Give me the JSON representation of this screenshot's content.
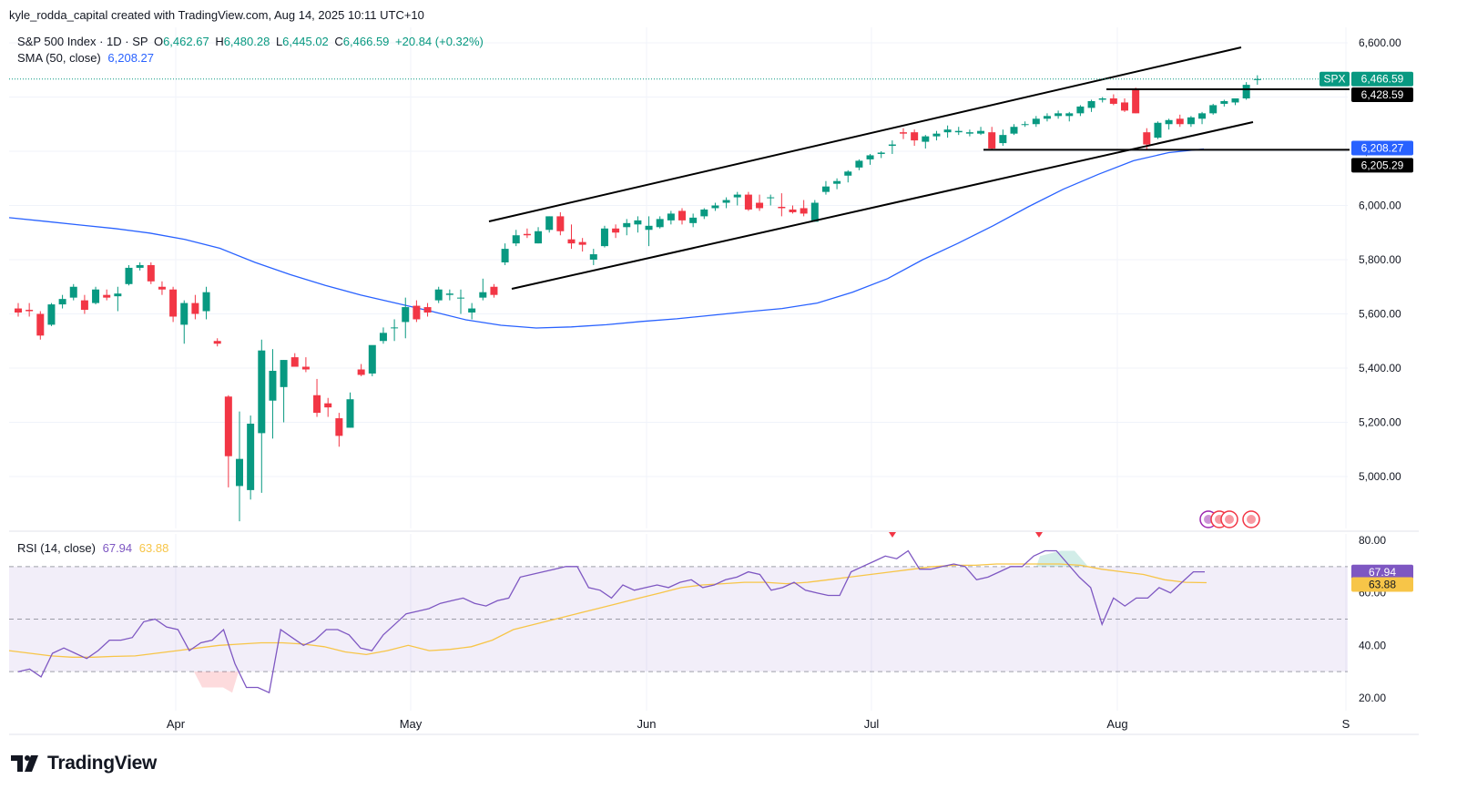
{
  "header": {
    "attribution": "kyle_rodda_capital created with TradingView.com, Aug 14, 2025 10:11 UTC+10"
  },
  "legend": {
    "symbol": "S&P 500 Index · 1D · SP",
    "open_label": "O",
    "open": "6,462.67",
    "high_label": "H",
    "high": "6,480.28",
    "low_label": "L",
    "low": "6,445.02",
    "close_label": "C",
    "close": "6,466.59",
    "change": "+20.84 (+0.32%)",
    "sma_label": "SMA (50, close)",
    "sma_value": "6,208.27",
    "rsi_label": "RSI (14, close)",
    "rsi_value": "67.94",
    "rsi_ma_value": "63.88"
  },
  "badges": {
    "spx_ticker": "SPX",
    "spx_price": "6,466.59",
    "resistance": "6,428.59",
    "sma": "6,208.27",
    "support": "6,205.29",
    "rsi": "67.94",
    "rsi_ma": "63.88"
  },
  "footer": {
    "brand": "TradingView"
  },
  "colors": {
    "up": "#089981",
    "down": "#f23645",
    "sma": "#2962ff",
    "rsi": "#7e57c2",
    "rsi_ma": "#f7c548",
    "line": "#000000"
  },
  "chart_data": [
    {
      "type": "candlestick",
      "title": "S&P 500 Index · 1D · SP",
      "x_labels": [
        "Apr",
        "May",
        "Jun",
        "Jul",
        "Aug",
        "S"
      ],
      "y_ticks": [
        "5,000.00",
        "5,200.00",
        "5,400.00",
        "5,600.00",
        "5,800.00",
        "6,000.00",
        "6,200.00",
        "6,400.00",
        "6,600.00"
      ],
      "ylim": [
        4840,
        6640
      ],
      "candles": [
        [
          5620,
          5640,
          5590,
          5605
        ],
        [
          5615,
          5640,
          5590,
          5610
        ],
        [
          5600,
          5610,
          5505,
          5520
        ],
        [
          5560,
          5640,
          5555,
          5635
        ],
        [
          5635,
          5670,
          5620,
          5655
        ],
        [
          5660,
          5710,
          5650,
          5700
        ],
        [
          5650,
          5670,
          5600,
          5615
        ],
        [
          5640,
          5700,
          5635,
          5690
        ],
        [
          5670,
          5690,
          5650,
          5660
        ],
        [
          5665,
          5700,
          5610,
          5675
        ],
        [
          5710,
          5780,
          5705,
          5770
        ],
        [
          5770,
          5790,
          5760,
          5780
        ],
        [
          5780,
          5790,
          5710,
          5720
        ],
        [
          5700,
          5720,
          5670,
          5690
        ],
        [
          5690,
          5700,
          5570,
          5590
        ],
        [
          5560,
          5650,
          5490,
          5640
        ],
        [
          5640,
          5670,
          5580,
          5600
        ],
        [
          5610,
          5700,
          5580,
          5680
        ],
        [
          5500,
          5510,
          5480,
          5490
        ],
        [
          5295,
          5300,
          4960,
          5075
        ],
        [
          4965,
          5240,
          4835,
          5065
        ],
        [
          4950,
          5225,
          4915,
          5195
        ],
        [
          5160,
          5505,
          4940,
          5465
        ],
        [
          5280,
          5470,
          5140,
          5390
        ],
        [
          5330,
          5430,
          5200,
          5430
        ],
        [
          5440,
          5455,
          5405,
          5405
        ],
        [
          5405,
          5440,
          5385,
          5395
        ],
        [
          5300,
          5360,
          5220,
          5235
        ],
        [
          5270,
          5290,
          5220,
          5255
        ],
        [
          5215,
          5235,
          5110,
          5150
        ],
        [
          5180,
          5310,
          5180,
          5285
        ],
        [
          5395,
          5415,
          5370,
          5375
        ],
        [
          5380,
          5480,
          5370,
          5485
        ],
        [
          5500,
          5550,
          5490,
          5530
        ],
        [
          5550,
          5580,
          5500,
          5550
        ],
        [
          5570,
          5660,
          5510,
          5625
        ],
        [
          5630,
          5650,
          5570,
          5580
        ],
        [
          5625,
          5640,
          5590,
          5605
        ],
        [
          5650,
          5700,
          5640,
          5690
        ],
        [
          5670,
          5690,
          5650,
          5675
        ],
        [
          5660,
          5690,
          5600,
          5660
        ],
        [
          5605,
          5640,
          5580,
          5620
        ],
        [
          5660,
          5730,
          5650,
          5680
        ],
        [
          5700,
          5710,
          5660,
          5670
        ],
        [
          5790,
          5860,
          5780,
          5840
        ],
        [
          5860,
          5910,
          5850,
          5890
        ],
        [
          5895,
          5915,
          5880,
          5890
        ],
        [
          5860,
          5920,
          5860,
          5905
        ],
        [
          5910,
          5960,
          5900,
          5960
        ],
        [
          5960,
          5975,
          5890,
          5905
        ],
        [
          5875,
          5930,
          5840,
          5860
        ],
        [
          5865,
          5880,
          5830,
          5855
        ],
        [
          5800,
          5840,
          5780,
          5820
        ],
        [
          5850,
          5925,
          5845,
          5915
        ],
        [
          5915,
          5930,
          5880,
          5900
        ],
        [
          5920,
          5950,
          5890,
          5935
        ],
        [
          5930,
          5960,
          5900,
          5945
        ],
        [
          5910,
          5960,
          5850,
          5925
        ],
        [
          5920,
          5960,
          5915,
          5950
        ],
        [
          5945,
          5980,
          5930,
          5970
        ],
        [
          5980,
          5990,
          5930,
          5945
        ],
        [
          5935,
          5970,
          5920,
          5955
        ],
        [
          5960,
          5990,
          5950,
          5985
        ],
        [
          5990,
          6010,
          5980,
          6000
        ],
        [
          6010,
          6030,
          5990,
          6020
        ],
        [
          6030,
          6050,
          6000,
          6040
        ],
        [
          6040,
          6050,
          5980,
          5985
        ],
        [
          6010,
          6040,
          5980,
          5990
        ],
        [
          6030,
          6040,
          6000,
          6030
        ],
        [
          5995,
          6045,
          5960,
          5990
        ],
        [
          5985,
          6000,
          5970,
          5975
        ],
        [
          5990,
          6020,
          5960,
          5970
        ],
        [
          5940,
          6020,
          5940,
          6010
        ],
        [
          6050,
          6090,
          6040,
          6070
        ],
        [
          6080,
          6100,
          6060,
          6090
        ],
        [
          6110,
          6130,
          6085,
          6125
        ],
        [
          6140,
          6170,
          6130,
          6165
        ],
        [
          6170,
          6190,
          6150,
          6185
        ],
        [
          6190,
          6200,
          6175,
          6195
        ],
        [
          6220,
          6240,
          6190,
          6225
        ],
        [
          6270,
          6285,
          6245,
          6265
        ],
        [
          6270,
          6280,
          6220,
          6240
        ],
        [
          6235,
          6260,
          6210,
          6255
        ],
        [
          6255,
          6275,
          6240,
          6265
        ],
        [
          6270,
          6295,
          6250,
          6280
        ],
        [
          6270,
          6290,
          6260,
          6275
        ],
        [
          6265,
          6280,
          6255,
          6270
        ],
        [
          6265,
          6290,
          6260,
          6275
        ],
        [
          6270,
          6290,
          6205,
          6210
        ],
        [
          6230,
          6280,
          6220,
          6260
        ],
        [
          6265,
          6300,
          6260,
          6290
        ],
        [
          6300,
          6310,
          6290,
          6300
        ],
        [
          6300,
          6330,
          6290,
          6320
        ],
        [
          6320,
          6340,
          6310,
          6330
        ],
        [
          6330,
          6350,
          6320,
          6340
        ],
        [
          6330,
          6345,
          6310,
          6340
        ],
        [
          6340,
          6370,
          6330,
          6365
        ],
        [
          6360,
          6390,
          6345,
          6385
        ],
        [
          6390,
          6400,
          6380,
          6395
        ],
        [
          6395,
          6410,
          6370,
          6375
        ],
        [
          6380,
          6395,
          6345,
          6350
        ],
        [
          6430,
          6435,
          6340,
          6340
        ],
        [
          6270,
          6285,
          6205,
          6225
        ],
        [
          6250,
          6310,
          6245,
          6305
        ],
        [
          6300,
          6320,
          6280,
          6315
        ],
        [
          6320,
          6335,
          6290,
          6300
        ],
        [
          6300,
          6330,
          6290,
          6325
        ],
        [
          6320,
          6345,
          6300,
          6340
        ],
        [
          6340,
          6375,
          6335,
          6370
        ],
        [
          6375,
          6390,
          6365,
          6385
        ],
        [
          6380,
          6395,
          6370,
          6395
        ],
        [
          6395,
          6455,
          6390,
          6445
        ],
        [
          6462.67,
          6480.28,
          6445.02,
          6466.59
        ]
      ],
      "sma_50": [
        5955,
        5942,
        5928,
        5915,
        5898,
        5875,
        5842,
        5790,
        5745,
        5705,
        5670,
        5640,
        5610,
        5578,
        5558,
        5548,
        5552,
        5560,
        5572,
        5582,
        5595,
        5608,
        5620,
        5640,
        5680,
        5730,
        5800,
        5860,
        5925,
        5995,
        6060,
        6115,
        6165,
        6195,
        6208.27
      ],
      "lines": [
        {
          "name": "upper channel",
          "from": [
            "May 12",
            5945
          ],
          "to": [
            "Aug 18",
            6590
          ]
        },
        {
          "name": "lower channel",
          "from": [
            "May 13",
            5700
          ],
          "to": [
            "Aug 20",
            6295
          ]
        },
        {
          "name": "resistance",
          "value": 6428.59
        },
        {
          "name": "support",
          "value": 6205.29
        }
      ]
    },
    {
      "type": "line",
      "title": "RSI (14, close)",
      "y_ticks": [
        "20.00",
        "40.00",
        "60.00",
        "80.00"
      ],
      "ylim": [
        15,
        82
      ],
      "levels": [
        70,
        50,
        30
      ],
      "rsi": [
        30,
        31,
        28,
        37,
        39,
        37,
        35,
        38,
        42,
        42,
        43,
        49,
        50,
        47,
        46,
        38,
        41,
        42,
        46,
        33,
        24,
        24,
        22,
        46,
        43,
        40,
        42,
        46,
        46,
        44,
        39,
        38,
        44,
        48,
        52,
        53,
        54,
        56,
        57,
        58,
        56,
        55,
        57,
        58,
        66,
        67,
        68,
        69,
        70,
        70,
        62,
        61,
        58,
        63,
        61,
        62,
        63,
        62,
        64,
        65,
        62,
        63,
        65,
        66,
        68,
        67,
        61,
        62,
        64,
        61,
        60,
        59,
        59,
        68,
        70,
        72,
        74,
        73,
        76,
        69,
        69,
        70,
        71,
        70,
        65,
        66,
        68,
        70,
        70,
        74,
        76,
        76,
        71,
        66,
        62,
        48,
        58,
        55,
        58,
        58,
        62,
        60,
        64,
        68,
        68
      ],
      "rsi_ma": [
        38,
        37,
        36,
        35.5,
        35.5,
        35.8,
        36,
        37,
        38,
        39,
        40,
        40.5,
        41,
        41,
        40.5,
        39.5,
        37.5,
        36.5,
        38,
        40,
        38,
        38.5,
        39.5,
        42,
        46,
        48,
        50,
        52,
        54,
        56,
        58,
        60,
        62,
        63,
        63.5,
        64,
        64,
        63.5,
        64,
        65,
        66,
        67,
        68,
        69,
        70,
        70.5,
        70.5,
        71,
        71,
        71,
        71,
        70.5,
        69,
        68,
        67,
        65,
        64,
        63.88
      ]
    }
  ],
  "x_axis_labels": [
    "Apr",
    "May",
    "Jun",
    "Jul",
    "Aug",
    "S"
  ],
  "price_ticks": [
    "6,600.00",
    "6,400.00",
    "6,200.00",
    "6,000.00",
    "5,800.00",
    "5,600.00",
    "5,400.00",
    "5,200.00",
    "5,000.00"
  ],
  "rsi_ticks": [
    "80.00",
    "60.00",
    "40.00",
    "20.00"
  ]
}
